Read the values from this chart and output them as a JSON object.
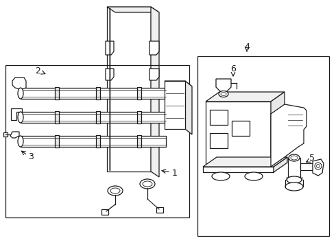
{
  "background_color": "#ffffff",
  "line_color": "#1a1a1a",
  "gray_fill": "#f0f0f0",
  "light_fill": "#f8f8f8",
  "figsize": [
    4.9,
    3.6
  ],
  "dpi": 100
}
